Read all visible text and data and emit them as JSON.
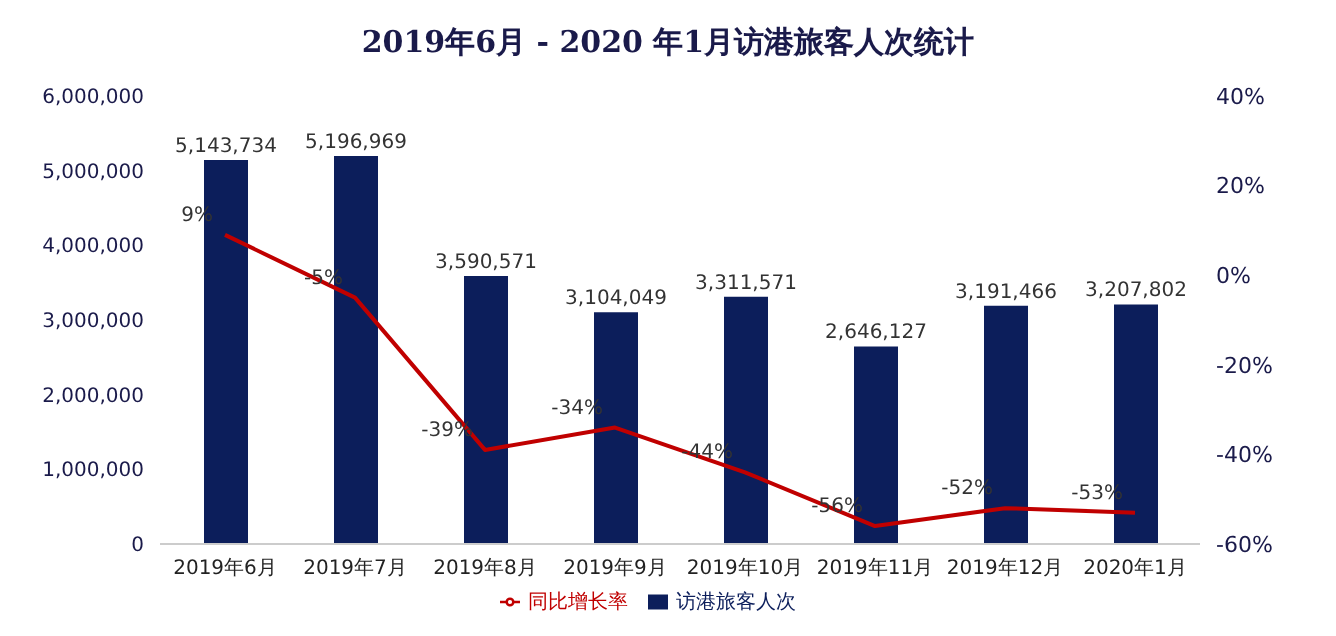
{
  "chart_data": {
    "type": "bar",
    "title": "2019年6月 - 2020 年1月访港旅客人次统计",
    "categories": [
      "2019年6月",
      "2019年7月",
      "2019年8月",
      "2019年9月",
      "2019年10月",
      "2019年11月",
      "2019年12月",
      "2020年1月"
    ],
    "series": [
      {
        "name": "访港旅客人次",
        "color": "#0c1e5b",
        "values": [
          5143734,
          5196969,
          3590571,
          3104049,
          3311571,
          2646127,
          3191466,
          3207802
        ],
        "value_labels": [
          "5,143,734",
          "5,196,969",
          "3,590,571",
          "3,104,049",
          "3,311,571",
          "2,646,127",
          "3,191,466",
          "3,207,802"
        ]
      },
      {
        "name": "同比增长率",
        "type": "line",
        "axis": "y2",
        "color": "#c00000",
        "values": [
          9,
          -5,
          -39,
          -34,
          -44,
          -56,
          -52,
          -53
        ],
        "value_labels": [
          "9%",
          "-5%",
          "-39%",
          "-34%",
          "-44%",
          "-56%",
          "-52%",
          "-53%"
        ]
      }
    ],
    "ylim": [
      0,
      6000000
    ],
    "yticks": [
      {
        "value": 0,
        "label": "0"
      },
      {
        "value": 1000000,
        "label": "1,000,000"
      },
      {
        "value": 2000000,
        "label": "2,000,000"
      },
      {
        "value": 3000000,
        "label": "3,000,000"
      },
      {
        "value": 4000000,
        "label": "4,000,000"
      },
      {
        "value": 5000000,
        "label": "5,000,000"
      },
      {
        "value": 6000000,
        "label": "6,000,000"
      }
    ],
    "y2lim": [
      -60,
      40
    ],
    "y2ticks": [
      {
        "value": -60,
        "label": "-60%"
      },
      {
        "value": -40,
        "label": "-40%"
      },
      {
        "value": -20,
        "label": "-20%"
      },
      {
        "value": 0,
        "label": "0%"
      },
      {
        "value": 20,
        "label": "20%"
      },
      {
        "value": 40,
        "label": "40%"
      }
    ],
    "legend": "bottom",
    "grid": false,
    "marker": "none",
    "line_style": "solid"
  }
}
